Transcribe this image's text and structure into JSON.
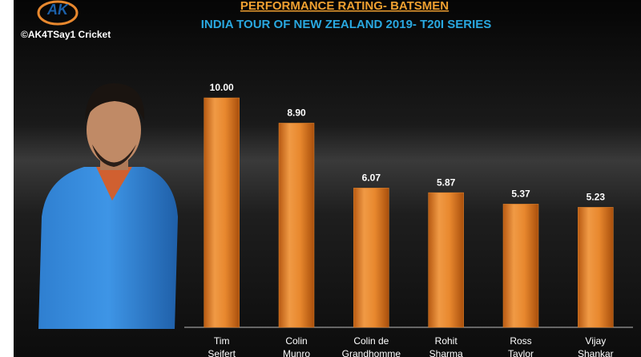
{
  "chart_data": {
    "type": "bar",
    "title": "PERFORMANCE RATING- BATSMEN",
    "subtitle": "INDIA TOUR OF NEW ZEALAND 2019- T20I SERIES",
    "logo": "AK",
    "credit": "©AK4TSay1 Cricket",
    "categories": [
      "Tim Seifert",
      "Colin Munro",
      "Colin de Grandhomme",
      "Rohit Sharma",
      "Ross Taylor",
      "Vijay Shankar"
    ],
    "values": [
      10,
      8.9,
      6.07,
      5.87,
      5.37,
      5.23
    ],
    "value_labels": [
      "10.00",
      "8.90",
      "6.07",
      "5.87",
      "5.37",
      "5.23"
    ],
    "color": "#e8882e"
  }
}
